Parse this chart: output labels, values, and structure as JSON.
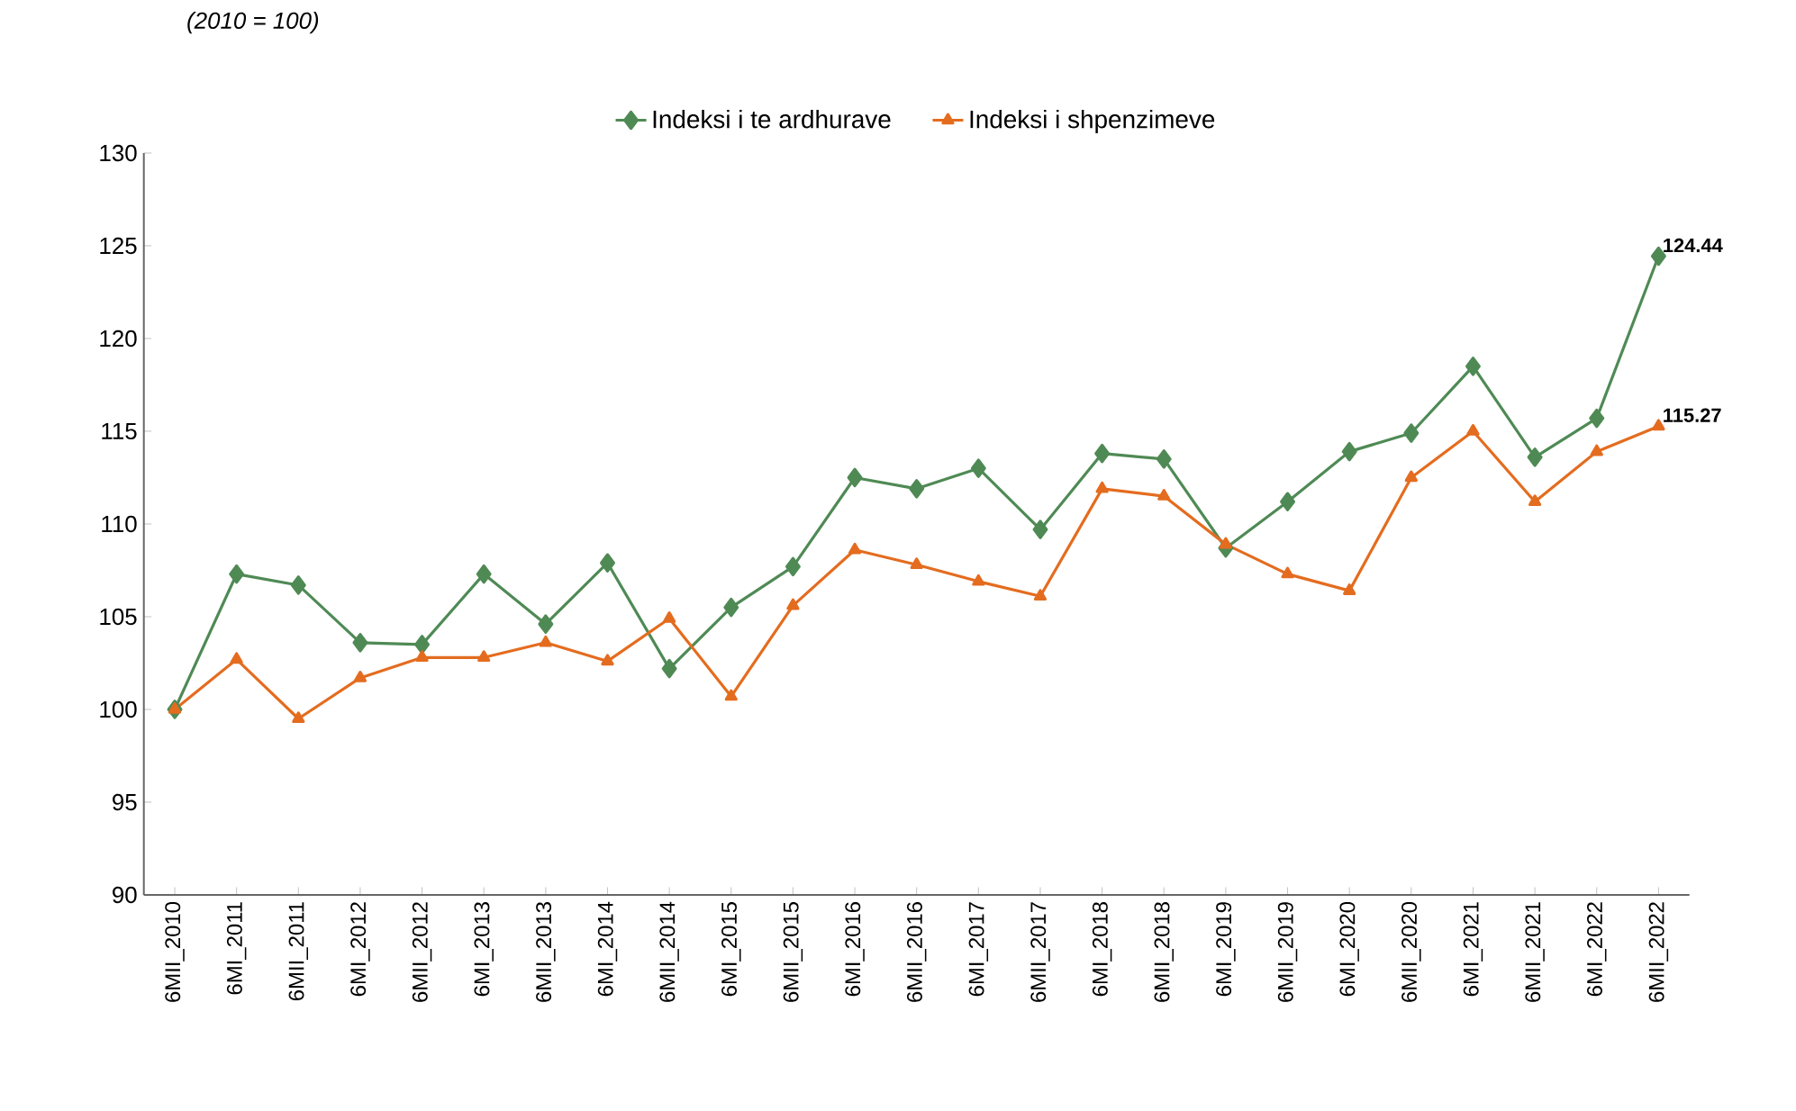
{
  "chart_data": {
    "type": "line",
    "subtitle": "(2010 = 100)",
    "categories": [
      "6MII_2010",
      "6MI_2011",
      "6MII_2011",
      "6MI_2012",
      "6MII_2012",
      "6MI_2013",
      "6MII_2013",
      "6MI_2014",
      "6MII_2014",
      "6MI_2015",
      "6MII_2015",
      "6MI_2016",
      "6MII_2016",
      "6MI_2017",
      "6MII_2017",
      "6MI_2018",
      "6MII_2018",
      "6MI_2019",
      "6MII_2019",
      "6MI_2020",
      "6MII_2020",
      "6MI_2021",
      "6MII_2021",
      "6MI_2022",
      "6MII_2022"
    ],
    "series": [
      {
        "name": "Indeksi i te ardhurave",
        "color": "#4f8a55",
        "marker": "diamond",
        "values": [
          100,
          107.3,
          106.7,
          103.6,
          103.5,
          107.3,
          104.6,
          107.9,
          102.2,
          105.5,
          107.7,
          112.5,
          111.9,
          113.0,
          109.7,
          113.8,
          113.5,
          108.7,
          111.2,
          113.9,
          114.9,
          118.5,
          113.6,
          115.7,
          124.44
        ],
        "value_labels": [
          null,
          null,
          null,
          null,
          null,
          null,
          null,
          null,
          null,
          null,
          null,
          null,
          null,
          null,
          null,
          null,
          null,
          null,
          null,
          null,
          null,
          null,
          null,
          null,
          "124.44"
        ]
      },
      {
        "name": "Indeksi i shpenzimeve",
        "color": "#e46c1f",
        "marker": "triangle",
        "values": [
          100,
          102.7,
          99.5,
          101.7,
          102.8,
          102.8,
          103.6,
          102.6,
          104.9,
          100.7,
          105.6,
          108.6,
          107.8,
          106.9,
          106.1,
          111.9,
          111.5,
          108.9,
          107.3,
          106.4,
          112.5,
          115.0,
          111.2,
          113.9,
          115.27
        ],
        "value_labels": [
          null,
          null,
          null,
          null,
          null,
          null,
          null,
          null,
          null,
          null,
          null,
          null,
          null,
          null,
          null,
          null,
          null,
          null,
          null,
          null,
          null,
          null,
          null,
          null,
          "115.27"
        ]
      }
    ],
    "ylim": [
      90,
      130
    ],
    "yticks": [
      90,
      95,
      100,
      105,
      110,
      115,
      120,
      125,
      130
    ],
    "grid": false,
    "legend": "top",
    "line_style": "solid"
  }
}
